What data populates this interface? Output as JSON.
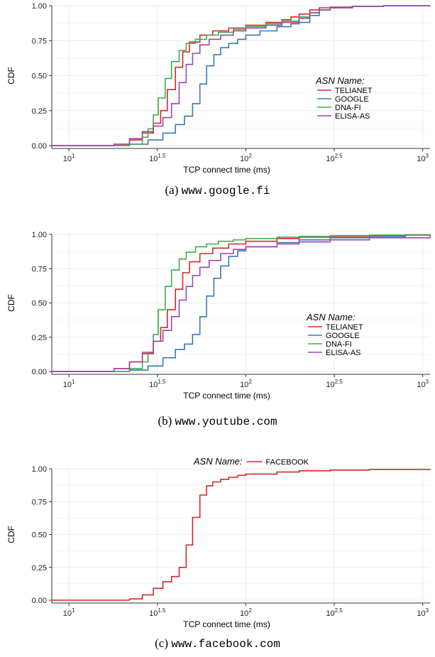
{
  "colors": {
    "TELIANET": "#d62728",
    "GOOGLE": "#3a78b5",
    "DNA-FI": "#3fae49",
    "ELISA-AS": "#9b47b0",
    "FACEBOOK": "#d62728",
    "grid": "#ebebeb",
    "axis": "#333333"
  },
  "chart_data": [
    {
      "type": "line",
      "step": true,
      "caption_prefix": "(a)",
      "caption_site": "www.google.fi",
      "xlabel": "TCP connect time (ms)",
      "ylabel": "CDF",
      "xscale": "log10",
      "xlim": [
        8,
        1100
      ],
      "ylim": [
        0,
        1
      ],
      "xticks": [
        {
          "value": 10,
          "base": "10",
          "exp": "1"
        },
        {
          "value": 31.62,
          "base": "10",
          "exp": "1.5"
        },
        {
          "value": 100,
          "base": "10",
          "exp": "2"
        },
        {
          "value": 316.2,
          "base": "10",
          "exp": "2.5"
        },
        {
          "value": 1000,
          "base": "10",
          "exp": "3"
        }
      ],
      "yticks": [
        "0.00",
        "0.25",
        "0.50",
        "0.75",
        "1.00"
      ],
      "grid": true,
      "legend_title": "ASN Name:",
      "legend_position": "right",
      "series": [
        {
          "name": "TELIANET",
          "x": [
            8,
            14,
            18,
            22,
            26,
            30,
            33,
            36,
            40,
            44,
            48,
            55,
            65,
            80,
            100,
            130,
            160,
            180,
            200,
            230,
            260,
            300,
            400,
            600,
            1100
          ],
          "y": [
            0,
            0,
            0.01,
            0.04,
            0.09,
            0.16,
            0.25,
            0.4,
            0.56,
            0.67,
            0.74,
            0.79,
            0.82,
            0.84,
            0.86,
            0.88,
            0.9,
            0.92,
            0.94,
            0.97,
            0.985,
            0.99,
            0.995,
            0.999,
            1.0
          ]
        },
        {
          "name": "GOOGLE",
          "x": [
            8,
            16,
            22,
            28,
            34,
            40,
            45,
            50,
            55,
            60,
            66,
            72,
            80,
            90,
            100,
            120,
            150,
            180,
            200,
            230,
            260,
            300,
            400,
            600,
            1100
          ],
          "y": [
            0,
            0,
            0.01,
            0.04,
            0.09,
            0.15,
            0.21,
            0.3,
            0.44,
            0.57,
            0.65,
            0.7,
            0.73,
            0.76,
            0.79,
            0.82,
            0.85,
            0.87,
            0.88,
            0.93,
            0.97,
            0.985,
            0.995,
            0.999,
            1.0
          ]
        },
        {
          "name": "DNA-FI",
          "x": [
            8,
            18,
            22,
            26,
            28,
            30,
            32,
            35,
            38,
            42,
            46,
            52,
            60,
            70,
            85,
            100,
            130,
            160,
            200,
            230,
            260,
            300,
            400,
            600,
            1100
          ],
          "y": [
            0,
            0,
            0.01,
            0.06,
            0.12,
            0.22,
            0.34,
            0.48,
            0.6,
            0.68,
            0.73,
            0.76,
            0.79,
            0.81,
            0.83,
            0.85,
            0.87,
            0.89,
            0.92,
            0.95,
            0.97,
            0.985,
            0.995,
            0.999,
            1.0
          ]
        },
        {
          "name": "ELISA-AS",
          "x": [
            8,
            14,
            18,
            22,
            26,
            30,
            34,
            38,
            42,
            46,
            50,
            55,
            62,
            72,
            85,
            100,
            130,
            160,
            200,
            230,
            260,
            300,
            400,
            600,
            1100
          ],
          "y": [
            0,
            0,
            0.01,
            0.05,
            0.1,
            0.14,
            0.2,
            0.3,
            0.45,
            0.58,
            0.66,
            0.72,
            0.76,
            0.79,
            0.82,
            0.84,
            0.86,
            0.88,
            0.91,
            0.95,
            0.97,
            0.985,
            0.995,
            0.999,
            1.0
          ]
        }
      ]
    },
    {
      "type": "line",
      "step": true,
      "caption_prefix": "(b)",
      "caption_site": "www.youtube.com",
      "xlabel": "TCP connect time (ms)",
      "ylabel": "CDF",
      "xscale": "log10",
      "xlim": [
        8,
        1100
      ],
      "ylim": [
        0,
        1
      ],
      "xticks": [
        {
          "value": 10,
          "base": "10",
          "exp": "1"
        },
        {
          "value": 31.62,
          "base": "10",
          "exp": "1.5"
        },
        {
          "value": 100,
          "base": "10",
          "exp": "2"
        },
        {
          "value": 316.2,
          "base": "10",
          "exp": "2.5"
        },
        {
          "value": 1000,
          "base": "10",
          "exp": "3"
        }
      ],
      "yticks": [
        "0.00",
        "0.25",
        "0.50",
        "0.75",
        "1.00"
      ],
      "grid": true,
      "legend_title": "ASN Name:",
      "legend_position": "right",
      "series": [
        {
          "name": "TELIANET",
          "x": [
            8,
            14,
            18,
            22,
            26,
            30,
            33,
            36,
            40,
            44,
            48,
            55,
            65,
            80,
            100,
            150,
            200,
            300,
            500,
            800,
            1100
          ],
          "y": [
            0,
            0,
            0.02,
            0.07,
            0.13,
            0.22,
            0.32,
            0.45,
            0.6,
            0.72,
            0.8,
            0.86,
            0.9,
            0.93,
            0.95,
            0.97,
            0.98,
            0.985,
            0.99,
            0.997,
            1.0
          ]
        },
        {
          "name": "GOOGLE",
          "x": [
            8,
            16,
            22,
            28,
            34,
            40,
            45,
            50,
            55,
            60,
            66,
            72,
            80,
            90,
            100,
            150,
            200,
            300,
            500,
            800,
            1100
          ],
          "y": [
            0,
            0,
            0.01,
            0.04,
            0.1,
            0.16,
            0.2,
            0.27,
            0.4,
            0.55,
            0.68,
            0.77,
            0.84,
            0.88,
            0.91,
            0.94,
            0.96,
            0.975,
            0.985,
            0.995,
            1.0
          ]
        },
        {
          "name": "DNA-FI",
          "x": [
            8,
            18,
            22,
            26,
            28,
            30,
            32,
            35,
            38,
            42,
            46,
            52,
            60,
            70,
            85,
            100,
            150,
            200,
            300,
            500,
            1100
          ],
          "y": [
            0,
            0,
            0.02,
            0.07,
            0.14,
            0.27,
            0.45,
            0.62,
            0.74,
            0.82,
            0.87,
            0.91,
            0.93,
            0.95,
            0.96,
            0.97,
            0.98,
            0.985,
            0.99,
            0.995,
            1.0
          ]
        },
        {
          "name": "ELISA-AS",
          "x": [
            8,
            14,
            18,
            22,
            26,
            30,
            34,
            38,
            42,
            46,
            50,
            55,
            62,
            72,
            85,
            100,
            150,
            200,
            300,
            500,
            1100
          ],
          "y": [
            0,
            0,
            0.02,
            0.07,
            0.14,
            0.22,
            0.3,
            0.4,
            0.52,
            0.62,
            0.7,
            0.76,
            0.81,
            0.86,
            0.89,
            0.91,
            0.93,
            0.945,
            0.96,
            0.975,
            1.0
          ]
        }
      ]
    },
    {
      "type": "line",
      "step": true,
      "caption_prefix": "(c)",
      "caption_site": "www.facebook.com",
      "xlabel": "TCP connect time (ms)",
      "ylabel": "CDF",
      "xscale": "log10",
      "xlim": [
        8,
        1100
      ],
      "ylim": [
        0,
        1
      ],
      "xticks": [
        {
          "value": 10,
          "base": "10",
          "exp": "1"
        },
        {
          "value": 31.62,
          "base": "10",
          "exp": "1.5"
        },
        {
          "value": 100,
          "base": "10",
          "exp": "2"
        },
        {
          "value": 316.2,
          "base": "10",
          "exp": "2.5"
        },
        {
          "value": 1000,
          "base": "10",
          "exp": "3"
        }
      ],
      "yticks": [
        "0.00",
        "0.25",
        "0.50",
        "0.75",
        "1.00"
      ],
      "grid": true,
      "legend_title": "ASN Name:",
      "legend_position": "top",
      "series": [
        {
          "name": "FACEBOOK",
          "x": [
            8,
            18,
            22,
            26,
            30,
            34,
            38,
            42,
            46,
            50,
            55,
            60,
            65,
            72,
            80,
            90,
            100,
            150,
            200,
            300,
            500,
            1100
          ],
          "y": [
            0,
            0,
            0.01,
            0.04,
            0.09,
            0.14,
            0.18,
            0.25,
            0.42,
            0.63,
            0.8,
            0.87,
            0.9,
            0.92,
            0.935,
            0.95,
            0.96,
            0.975,
            0.985,
            0.99,
            0.995,
            1.0
          ]
        }
      ]
    }
  ]
}
